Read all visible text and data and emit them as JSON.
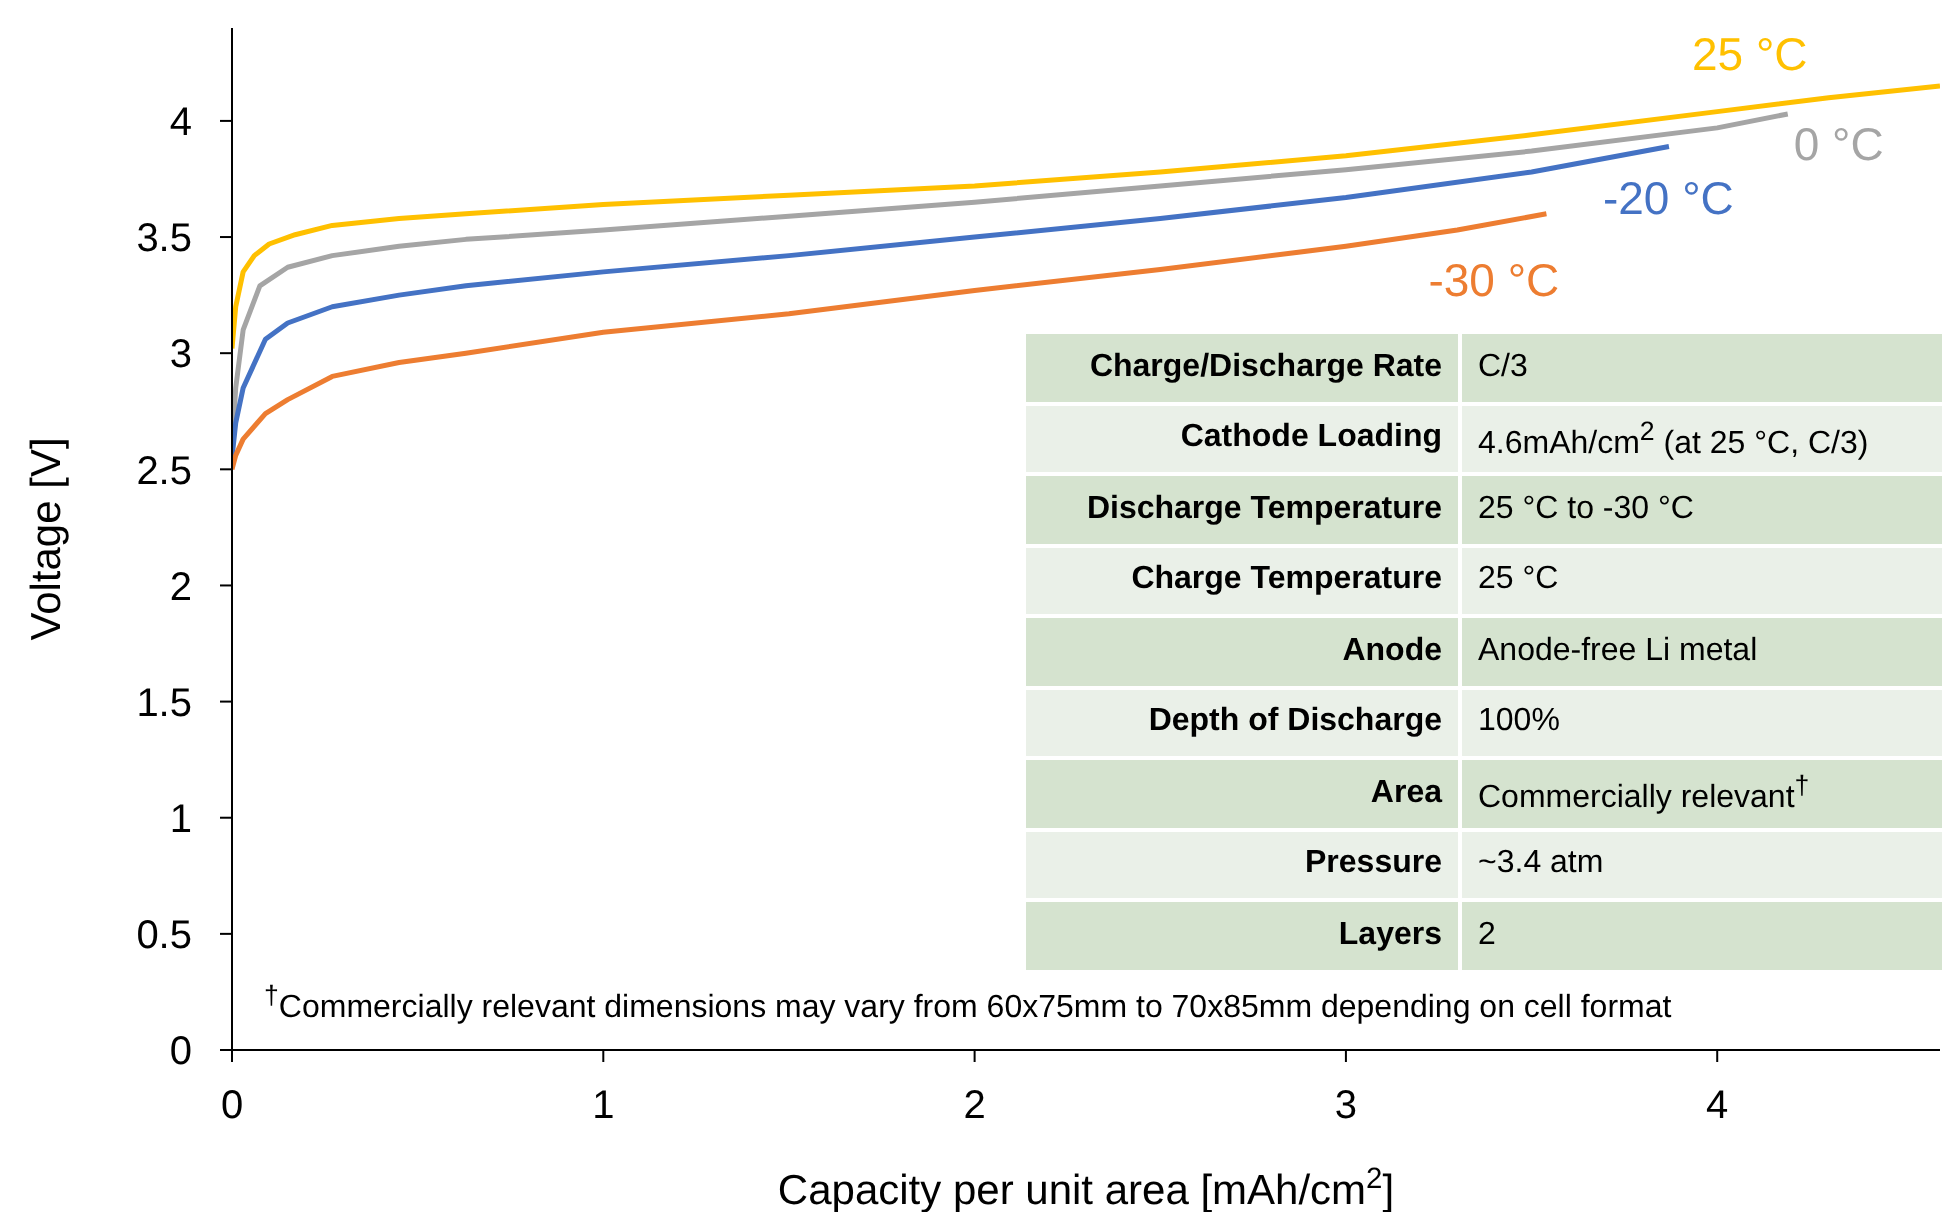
{
  "chart_data": {
    "type": "line",
    "xlabel": "Capacity per unit area [mAh/cm$^{2}$]",
    "ylabel": "Voltage [V]",
    "xlim": [
      0,
      4.6
    ],
    "xticks": [
      0,
      1,
      2,
      3,
      4
    ],
    "ylim": [
      0,
      4.4
    ],
    "yticks": [
      0,
      0.5,
      1,
      1.5,
      2,
      2.5,
      3,
      3.5,
      4
    ],
    "marker": "none",
    "line_style": "solid",
    "series": [
      {
        "name": "25 °C",
        "color": "#ffc000",
        "x": [
          0,
          0.01,
          0.03,
          0.06,
          0.1,
          0.17,
          0.27,
          0.45,
          0.63,
          1,
          1.5,
          2,
          2.5,
          3,
          3.5,
          4,
          4.3,
          4.6
        ],
        "values": [
          3.02,
          3.2,
          3.35,
          3.42,
          3.47,
          3.51,
          3.55,
          3.58,
          3.6,
          3.64,
          3.68,
          3.72,
          3.78,
          3.85,
          3.94,
          4.04,
          4.1,
          4.15
        ]
      },
      {
        "name": "0 °C",
        "color": "#a5a5a5",
        "x": [
          0,
          0.01,
          0.03,
          0.075,
          0.15,
          0.27,
          0.45,
          0.63,
          1,
          1.5,
          2,
          2.5,
          3,
          3.5,
          4,
          4.19
        ],
        "values": [
          2.6,
          2.85,
          3.1,
          3.29,
          3.37,
          3.42,
          3.46,
          3.49,
          3.53,
          3.59,
          3.65,
          3.72,
          3.79,
          3.87,
          3.97,
          4.03
        ]
      },
      {
        "name": "-20 °C",
        "color": "#4472c4",
        "x": [
          0,
          0.01,
          0.03,
          0.09,
          0.15,
          0.27,
          0.45,
          0.63,
          1,
          1.5,
          2,
          2.5,
          3,
          3.5,
          3.87
        ],
        "values": [
          2.55,
          2.7,
          2.85,
          3.06,
          3.13,
          3.2,
          3.25,
          3.29,
          3.35,
          3.42,
          3.5,
          3.58,
          3.67,
          3.78,
          3.89
        ]
      },
      {
        "name": "-30 °C",
        "color": "#ed7d31",
        "x": [
          0,
          0.01,
          0.03,
          0.09,
          0.15,
          0.27,
          0.45,
          0.63,
          1,
          1.5,
          2,
          2.5,
          3,
          3.3,
          3.54
        ],
        "values": [
          2.5,
          2.56,
          2.63,
          2.74,
          2.8,
          2.9,
          2.96,
          3.0,
          3.09,
          3.17,
          3.27,
          3.36,
          3.46,
          3.53,
          3.6
        ]
      }
    ],
    "annotations": [
      "Charge/Discharge Rate",
      "C/3",
      "Cathode Loading",
      "4.6mAh/cm$^{2}$ (at 25 °C, C/3)",
      "Discharge Temperature",
      "25 °C to -30 °C",
      "Charge Temperature",
      "25 °C",
      "Anode",
      "Anode-free Li metal",
      "Depth of Discharge",
      "100%",
      "Area",
      "Commercially relevant$^{†}$",
      "Pressure",
      "~3.4 atm",
      "Layers",
      "2",
      "$^{†}$Commercially relevant dimensions may vary from 60x75mm to 70x85mm depending on cell format"
    ]
  }
}
